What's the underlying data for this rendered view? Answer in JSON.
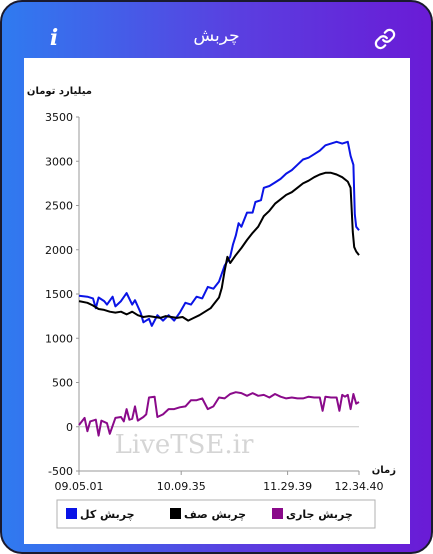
{
  "header": {
    "title": "چربش",
    "info_label": "i"
  },
  "colors": {
    "total": "#0a14e6",
    "queue": "#000000",
    "running": "#8a0a8a"
  },
  "chart_data": {
    "type": "line",
    "ylabel": "میلیارد تومان",
    "xlabel": "زمان",
    "ylim": [
      -500,
      3500
    ],
    "yticks": [
      -500,
      0,
      500,
      1000,
      1500,
      2000,
      2500,
      3000,
      3500
    ],
    "xticks": [
      "09.05.01",
      "10.09.35",
      "11.29.39",
      "12.34.40"
    ],
    "x_domain": [
      0,
      100
    ],
    "xtick_positions": [
      0,
      36.5,
      74.5,
      100
    ],
    "grid": false,
    "legend_position": "bottom",
    "watermark": "LiveTSE.ir",
    "series": [
      {
        "name": "چربش کل",
        "color_key": "total",
        "points": [
          [
            0,
            1480
          ],
          [
            3,
            1470
          ],
          [
            5,
            1450
          ],
          [
            6,
            1340
          ],
          [
            7,
            1460
          ],
          [
            9,
            1420
          ],
          [
            10,
            1380
          ],
          [
            12,
            1470
          ],
          [
            13,
            1360
          ],
          [
            15,
            1420
          ],
          [
            17,
            1510
          ],
          [
            19,
            1380
          ],
          [
            20,
            1430
          ],
          [
            22,
            1290
          ],
          [
            23,
            1180
          ],
          [
            25,
            1220
          ],
          [
            26,
            1140
          ],
          [
            28,
            1260
          ],
          [
            30,
            1200
          ],
          [
            32,
            1260
          ],
          [
            34,
            1200
          ],
          [
            36,
            1290
          ],
          [
            38,
            1400
          ],
          [
            40,
            1380
          ],
          [
            42,
            1470
          ],
          [
            44,
            1450
          ],
          [
            46,
            1580
          ],
          [
            48,
            1560
          ],
          [
            50,
            1640
          ],
          [
            52,
            1820
          ],
          [
            54,
            1920
          ],
          [
            55,
            2060
          ],
          [
            56,
            2160
          ],
          [
            57,
            2300
          ],
          [
            58,
            2260
          ],
          [
            60,
            2420
          ],
          [
            62,
            2420
          ],
          [
            63,
            2540
          ],
          [
            65,
            2560
          ],
          [
            66,
            2700
          ],
          [
            68,
            2720
          ],
          [
            70,
            2760
          ],
          [
            72,
            2800
          ],
          [
            74,
            2860
          ],
          [
            76,
            2900
          ],
          [
            78,
            2960
          ],
          [
            80,
            3020
          ],
          [
            82,
            3040
          ],
          [
            84,
            3080
          ],
          [
            86,
            3120
          ],
          [
            88,
            3180
          ],
          [
            90,
            3200
          ],
          [
            92,
            3220
          ],
          [
            94,
            3200
          ],
          [
            96,
            3220
          ],
          [
            97,
            3060
          ],
          [
            98,
            2960
          ],
          [
            98.5,
            2400
          ],
          [
            99,
            2260
          ],
          [
            100,
            2220
          ]
        ]
      },
      {
        "name": "چربش صف",
        "color_key": "queue",
        "points": [
          [
            0,
            1420
          ],
          [
            3,
            1400
          ],
          [
            5,
            1370
          ],
          [
            7,
            1330
          ],
          [
            9,
            1320
          ],
          [
            11,
            1300
          ],
          [
            13,
            1290
          ],
          [
            15,
            1300
          ],
          [
            17,
            1270
          ],
          [
            19,
            1300
          ],
          [
            21,
            1260
          ],
          [
            23,
            1240
          ],
          [
            25,
            1250
          ],
          [
            27,
            1240
          ],
          [
            29,
            1230
          ],
          [
            31,
            1250
          ],
          [
            33,
            1240
          ],
          [
            35,
            1230
          ],
          [
            37,
            1240
          ],
          [
            39,
            1200
          ],
          [
            41,
            1230
          ],
          [
            43,
            1260
          ],
          [
            45,
            1300
          ],
          [
            47,
            1340
          ],
          [
            48,
            1380
          ],
          [
            50,
            1460
          ],
          [
            51,
            1570
          ],
          [
            52,
            1760
          ],
          [
            53,
            1920
          ],
          [
            54,
            1850
          ],
          [
            56,
            1940
          ],
          [
            58,
            2020
          ],
          [
            60,
            2110
          ],
          [
            62,
            2190
          ],
          [
            64,
            2260
          ],
          [
            66,
            2380
          ],
          [
            68,
            2440
          ],
          [
            70,
            2520
          ],
          [
            72,
            2570
          ],
          [
            74,
            2620
          ],
          [
            76,
            2650
          ],
          [
            78,
            2700
          ],
          [
            80,
            2750
          ],
          [
            82,
            2780
          ],
          [
            84,
            2820
          ],
          [
            86,
            2850
          ],
          [
            88,
            2870
          ],
          [
            90,
            2870
          ],
          [
            92,
            2850
          ],
          [
            94,
            2820
          ],
          [
            96,
            2770
          ],
          [
            97,
            2700
          ],
          [
            97.8,
            2200
          ],
          [
            98.3,
            2030
          ],
          [
            99,
            1980
          ],
          [
            100,
            1940
          ]
        ]
      },
      {
        "name": "چربش جاری",
        "color_key": "running",
        "points": [
          [
            0,
            20
          ],
          [
            2,
            100
          ],
          [
            3,
            -50
          ],
          [
            4,
            60
          ],
          [
            6,
            80
          ],
          [
            7,
            -100
          ],
          [
            8,
            70
          ],
          [
            10,
            40
          ],
          [
            11,
            -80
          ],
          [
            13,
            100
          ],
          [
            15,
            110
          ],
          [
            16,
            60
          ],
          [
            17,
            200
          ],
          [
            18,
            80
          ],
          [
            19,
            90
          ],
          [
            20,
            230
          ],
          [
            21,
            70
          ],
          [
            23,
            110
          ],
          [
            24,
            140
          ],
          [
            25,
            330
          ],
          [
            27,
            340
          ],
          [
            28,
            110
          ],
          [
            30,
            140
          ],
          [
            32,
            200
          ],
          [
            34,
            200
          ],
          [
            36,
            220
          ],
          [
            38,
            230
          ],
          [
            40,
            300
          ],
          [
            42,
            300
          ],
          [
            44,
            320
          ],
          [
            46,
            200
          ],
          [
            48,
            230
          ],
          [
            50,
            330
          ],
          [
            52,
            320
          ],
          [
            54,
            370
          ],
          [
            56,
            390
          ],
          [
            58,
            380
          ],
          [
            60,
            350
          ],
          [
            62,
            380
          ],
          [
            64,
            350
          ],
          [
            66,
            360
          ],
          [
            68,
            330
          ],
          [
            70,
            370
          ],
          [
            72,
            340
          ],
          [
            74,
            320
          ],
          [
            76,
            330
          ],
          [
            78,
            320
          ],
          [
            80,
            320
          ],
          [
            82,
            340
          ],
          [
            84,
            330
          ],
          [
            86,
            330
          ],
          [
            87,
            180
          ],
          [
            88,
            340
          ],
          [
            90,
            330
          ],
          [
            92,
            330
          ],
          [
            93,
            180
          ],
          [
            94,
            360
          ],
          [
            95,
            340
          ],
          [
            96,
            360
          ],
          [
            97,
            200
          ],
          [
            98,
            370
          ],
          [
            99,
            260
          ],
          [
            100,
            280
          ]
        ]
      }
    ]
  }
}
